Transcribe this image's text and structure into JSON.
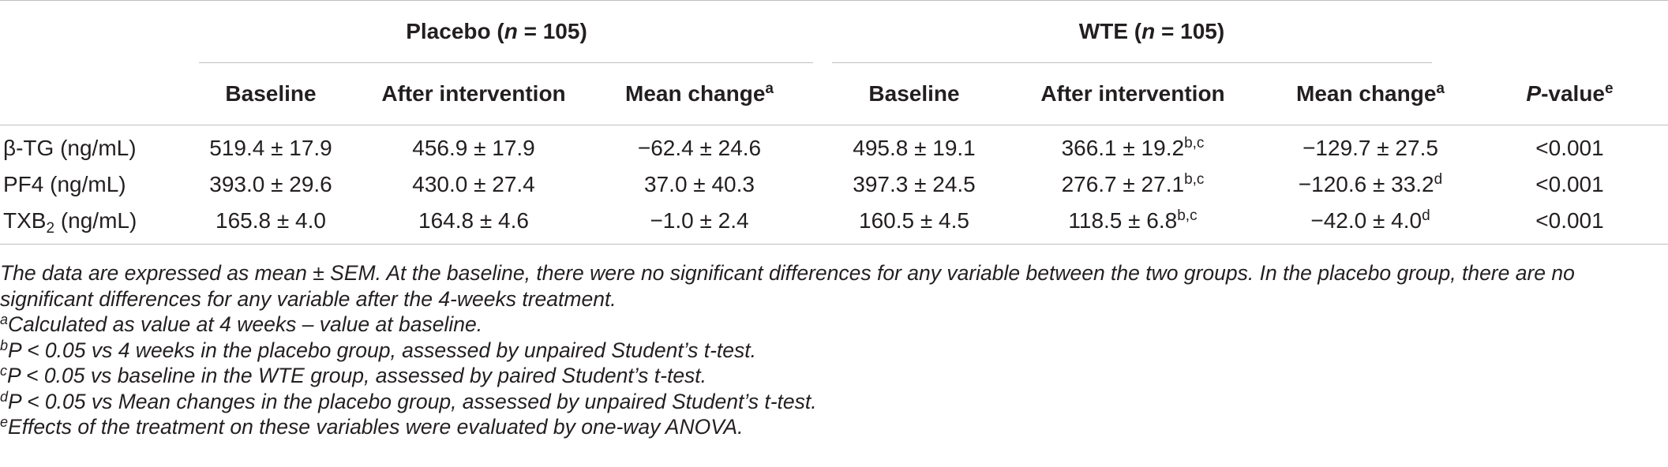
{
  "groups": {
    "placebo": {
      "name": "Placebo",
      "n_prefix": "(",
      "n_symbol": "n",
      "n_value": " = 105)"
    },
    "wte": {
      "name": "WTE",
      "n_prefix": "(",
      "n_symbol": "n",
      "n_value": " = 105)"
    }
  },
  "columns": {
    "baseline": "Baseline",
    "after": "After intervention",
    "mean_change": "Mean change",
    "mean_change_mark": "a",
    "p_symbol": "P",
    "p_rest": "-value",
    "p_mark": "e"
  },
  "rows": [
    {
      "label_main": "β-TG (ng/mL)",
      "label_sub": "",
      "label_tail": "",
      "placebo_baseline": "519.4 ± 17.9",
      "placebo_after": "456.9 ± 17.9",
      "placebo_change": "−62.4 ± 24.6",
      "wte_baseline": "495.8 ± 19.1",
      "wte_after": "366.1 ± 19.2",
      "wte_after_mark": "b,c",
      "wte_change": "−129.7 ± 27.5",
      "wte_change_mark": "",
      "p_value": "<0.001"
    },
    {
      "label_main": "PF4 (ng/mL)",
      "label_sub": "",
      "label_tail": "",
      "placebo_baseline": "393.0 ± 29.6",
      "placebo_after": "430.0 ± 27.4",
      "placebo_change": "37.0 ± 40.3",
      "wte_baseline": "397.3 ± 24.5",
      "wte_after": "276.7 ± 27.1",
      "wte_after_mark": "b,c",
      "wte_change": "−120.6 ± 33.2",
      "wte_change_mark": "d",
      "p_value": "<0.001"
    },
    {
      "label_main": "TXB",
      "label_sub": "2",
      "label_tail": " (ng/mL)",
      "placebo_baseline": "165.8 ± 4.0",
      "placebo_after": "164.8 ± 4.6",
      "placebo_change": "−1.0 ± 2.4",
      "wte_baseline": "160.5 ± 4.5",
      "wte_after": "118.5 ± 6.8",
      "wte_after_mark": "b,c",
      "wte_change": "−42.0 ± 4.0",
      "wte_change_mark": "d",
      "p_value": "<0.001"
    }
  ],
  "notes": {
    "main": "The data are expressed as mean ± SEM. At the baseline, there were no significant differences for any variable between the two groups. In the placebo group, there are no significant differences for any variable after the 4-weeks treatment.",
    "footnotes": [
      {
        "mark": "a",
        "text": "Calculated as value at 4 weeks – value at baseline."
      },
      {
        "mark": "b",
        "text": "P < 0.05 vs 4 weeks in the placebo group, assessed by unpaired Student’s t-test."
      },
      {
        "mark": "c",
        "text": "P < 0.05 vs baseline in the WTE group, assessed by paired Student’s t-test."
      },
      {
        "mark": "d",
        "text": "P < 0.05 vs Mean changes in the placebo group, assessed by unpaired Student’s t-test."
      },
      {
        "mark": "e",
        "text": "Effects of the treatment on these variables were evaluated by one-way ANOVA."
      }
    ]
  }
}
